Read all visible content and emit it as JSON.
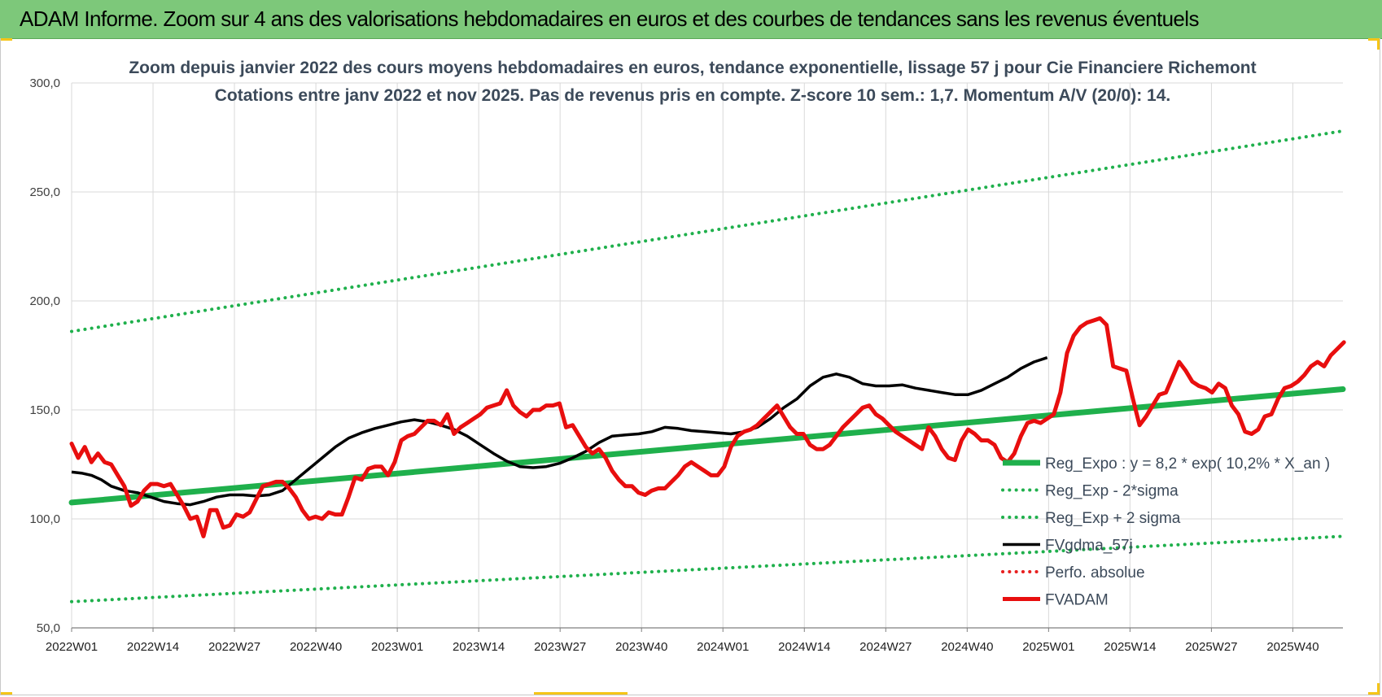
{
  "header": {
    "title": "ADAM Informe. Zoom sur 4 ans des valorisations hebdomadaires en euros et des courbes de tendances sans les revenus éventuels"
  },
  "chart_data": {
    "type": "line",
    "title": "Zoom depuis janvier 2022 des cours moyens hebdomadaires en euros, tendance exponentielle, lissage 57 j pour Cie Financiere Richemont",
    "subtitle": "Cotations entre janv 2022 et nov 2025. Pas de revenus pris en compte. Z-score 10 sem.: 1,7. Momentum A/V (20/0): 14.",
    "xlabel": "",
    "ylabel": "",
    "ylim": [
      50,
      300
    ],
    "yticks": [
      50,
      100,
      150,
      200,
      250,
      300
    ],
    "ytick_labels": [
      "50,0",
      "100,0",
      "150,0",
      "200,0",
      "250,0",
      "300,0"
    ],
    "xticks": [
      "2022W01",
      "2022W14",
      "2022W27",
      "2022W40",
      "2023W01",
      "2023W14",
      "2023W27",
      "2023W40",
      "2024W01",
      "2024W14",
      "2024W27",
      "2024W40",
      "2025W01",
      "2025W14",
      "2025W27",
      "2025W40"
    ],
    "x_week_range": [
      0,
      203
    ],
    "grid": true,
    "legend_position": "right-center",
    "series": [
      {
        "name": "Reg_Expo : y = 8,2 * exp( 10,2% *  X_an )",
        "color": "#1fb04c",
        "style": "thick-solid",
        "points": [
          [
            0,
            107.5
          ],
          [
            203,
            159.5
          ]
        ]
      },
      {
        "name": "Reg_Exp - 2*sigma",
        "color": "#1fb04c",
        "style": "dotted",
        "points": [
          [
            0,
            62
          ],
          [
            203,
            92
          ]
        ]
      },
      {
        "name": "Reg_Exp + 2 sigma",
        "color": "#1fb04c",
        "style": "dotted",
        "points": [
          [
            0,
            186
          ],
          [
            203,
            278
          ]
        ]
      },
      {
        "name": "FVgdma_57j",
        "color": "#000000",
        "style": "solid",
        "points": [
          [
            0,
            121.5
          ],
          [
            3,
            121
          ],
          [
            6,
            120
          ],
          [
            9,
            118
          ],
          [
            12,
            115
          ],
          [
            16,
            113
          ],
          [
            20,
            112
          ],
          [
            24,
            110
          ],
          [
            28,
            108
          ],
          [
            32,
            107
          ],
          [
            36,
            106.5
          ],
          [
            40,
            108
          ],
          [
            44,
            110
          ],
          [
            48,
            111
          ],
          [
            52,
            111
          ],
          [
            56,
            110.5
          ],
          [
            60,
            111
          ],
          [
            64,
            113
          ],
          [
            68,
            118
          ],
          [
            72,
            123
          ],
          [
            76,
            128
          ],
          [
            80,
            133
          ],
          [
            84,
            137
          ],
          [
            88,
            139.5
          ],
          [
            92,
            141.5
          ],
          [
            96,
            143
          ],
          [
            100,
            144.5
          ],
          [
            104,
            145.5
          ],
          [
            108,
            144.5
          ],
          [
            112,
            143
          ],
          [
            116,
            141
          ],
          [
            120,
            138
          ],
          [
            124,
            134
          ],
          [
            128,
            130
          ],
          [
            132,
            126.5
          ],
          [
            136,
            124
          ],
          [
            140,
            123.5
          ],
          [
            144,
            124
          ],
          [
            148,
            125.5
          ],
          [
            152,
            128
          ],
          [
            156,
            131
          ],
          [
            160,
            135
          ],
          [
            164,
            138
          ],
          [
            168,
            138.5
          ],
          [
            172,
            139
          ],
          [
            176,
            140
          ],
          [
            180,
            142
          ],
          [
            184,
            141.5
          ],
          [
            188,
            140.5
          ],
          [
            192,
            140
          ],
          [
            196,
            139.5
          ],
          [
            200,
            139
          ],
          [
            204,
            140
          ],
          [
            208,
            142
          ],
          [
            212,
            146
          ],
          [
            216,
            151
          ],
          [
            220,
            155
          ],
          [
            224,
            161
          ],
          [
            228,
            165
          ],
          [
            232,
            166.5
          ],
          [
            236,
            165
          ],
          [
            240,
            162
          ],
          [
            244,
            161
          ],
          [
            248,
            161
          ],
          [
            252,
            161.5
          ],
          [
            256,
            160
          ],
          [
            260,
            159
          ],
          [
            264,
            158
          ],
          [
            268,
            157
          ],
          [
            272,
            157
          ],
          [
            276,
            159
          ],
          [
            280,
            162
          ],
          [
            284,
            165
          ],
          [
            288,
            169
          ],
          [
            292,
            172
          ],
          [
            296,
            174
          ]
        ]
      },
      {
        "name": "Perfo. absolue",
        "color": "#e82020",
        "style": "dotted",
        "points": []
      },
      {
        "name": "FVADAM",
        "color": "#e80e0e",
        "style": "thick-solid",
        "points": [
          [
            0,
            134.5
          ],
          [
            2,
            128
          ],
          [
            4,
            133
          ],
          [
            6,
            126
          ],
          [
            8,
            130
          ],
          [
            10,
            126
          ],
          [
            12,
            125
          ],
          [
            14,
            120
          ],
          [
            16,
            115
          ],
          [
            18,
            106
          ],
          [
            20,
            108
          ],
          [
            22,
            113
          ],
          [
            24,
            116
          ],
          [
            26,
            116
          ],
          [
            28,
            115
          ],
          [
            30,
            116
          ],
          [
            32,
            111
          ],
          [
            34,
            106
          ],
          [
            36,
            100
          ],
          [
            38,
            101
          ],
          [
            40,
            92
          ],
          [
            42,
            104
          ],
          [
            44,
            104
          ],
          [
            46,
            96
          ],
          [
            48,
            97
          ],
          [
            50,
            102
          ],
          [
            52,
            101
          ],
          [
            54,
            103
          ],
          [
            56,
            109
          ],
          [
            58,
            115
          ],
          [
            60,
            116
          ],
          [
            62,
            117
          ],
          [
            64,
            117
          ],
          [
            66,
            114
          ],
          [
            68,
            110
          ],
          [
            70,
            104
          ],
          [
            72,
            100
          ],
          [
            74,
            101
          ],
          [
            76,
            100
          ],
          [
            78,
            103
          ],
          [
            80,
            102
          ],
          [
            82,
            102
          ],
          [
            84,
            110
          ],
          [
            86,
            119
          ],
          [
            88,
            118
          ],
          [
            90,
            123
          ],
          [
            92,
            124
          ],
          [
            94,
            124
          ],
          [
            96,
            120
          ],
          [
            98,
            126
          ],
          [
            100,
            136
          ],
          [
            102,
            138
          ],
          [
            104,
            139
          ],
          [
            106,
            142
          ],
          [
            108,
            145
          ],
          [
            110,
            145
          ],
          [
            112,
            143
          ],
          [
            114,
            148
          ],
          [
            116,
            139
          ],
          [
            118,
            142
          ],
          [
            120,
            144
          ],
          [
            122,
            146
          ],
          [
            124,
            148
          ],
          [
            126,
            151
          ],
          [
            128,
            152
          ],
          [
            130,
            153
          ],
          [
            132,
            159
          ],
          [
            134,
            152
          ],
          [
            136,
            149
          ],
          [
            138,
            147
          ],
          [
            140,
            150
          ],
          [
            142,
            150
          ],
          [
            144,
            152
          ],
          [
            146,
            152
          ],
          [
            148,
            153
          ],
          [
            150,
            142
          ],
          [
            152,
            143
          ],
          [
            154,
            138
          ],
          [
            156,
            133
          ],
          [
            158,
            130
          ],
          [
            160,
            132
          ],
          [
            162,
            128
          ],
          [
            164,
            122
          ],
          [
            166,
            118
          ],
          [
            168,
            115
          ],
          [
            170,
            115
          ],
          [
            172,
            112
          ],
          [
            174,
            111
          ],
          [
            176,
            113
          ],
          [
            178,
            114
          ],
          [
            180,
            114
          ],
          [
            182,
            117
          ],
          [
            184,
            120
          ],
          [
            186,
            124
          ],
          [
            188,
            126
          ],
          [
            190,
            124
          ],
          [
            192,
            122
          ],
          [
            194,
            120
          ],
          [
            196,
            120
          ],
          [
            198,
            124
          ],
          [
            200,
            133
          ],
          [
            202,
            138
          ],
          [
            204,
            140
          ],
          [
            206,
            141
          ],
          [
            208,
            143
          ],
          [
            210,
            146
          ],
          [
            212,
            149
          ],
          [
            214,
            152
          ],
          [
            216,
            147
          ],
          [
            218,
            142
          ],
          [
            220,
            139
          ],
          [
            222,
            139
          ],
          [
            224,
            134
          ],
          [
            226,
            132
          ],
          [
            228,
            132
          ],
          [
            230,
            134
          ],
          [
            232,
            138
          ],
          [
            234,
            142
          ],
          [
            236,
            145
          ],
          [
            238,
            148
          ],
          [
            240,
            151
          ],
          [
            242,
            152
          ],
          [
            244,
            148
          ],
          [
            246,
            146
          ],
          [
            248,
            143
          ],
          [
            250,
            140
          ],
          [
            252,
            138
          ],
          [
            254,
            136
          ],
          [
            256,
            134
          ],
          [
            258,
            132
          ],
          [
            260,
            142
          ],
          [
            262,
            138
          ],
          [
            264,
            132
          ],
          [
            266,
            128
          ],
          [
            268,
            127
          ],
          [
            270,
            136
          ],
          [
            272,
            141
          ],
          [
            274,
            139
          ],
          [
            276,
            136
          ],
          [
            278,
            136
          ],
          [
            280,
            134
          ],
          [
            282,
            128
          ],
          [
            284,
            126
          ],
          [
            286,
            130
          ],
          [
            288,
            138
          ],
          [
            290,
            144
          ],
          [
            292,
            145
          ],
          [
            294,
            144
          ],
          [
            296,
            146
          ],
          [
            298,
            148
          ],
          [
            300,
            158
          ],
          [
            302,
            176
          ],
          [
            304,
            184
          ],
          [
            306,
            188
          ],
          [
            308,
            190
          ],
          [
            310,
            191
          ],
          [
            312,
            192
          ],
          [
            314,
            189
          ],
          [
            316,
            170
          ],
          [
            318,
            169
          ],
          [
            320,
            168
          ],
          [
            322,
            155
          ],
          [
            324,
            143
          ],
          [
            326,
            147
          ],
          [
            328,
            152
          ],
          [
            330,
            157
          ],
          [
            332,
            158
          ],
          [
            334,
            165
          ],
          [
            336,
            172
          ],
          [
            338,
            168
          ],
          [
            340,
            163
          ],
          [
            342,
            161
          ],
          [
            344,
            160
          ],
          [
            346,
            158
          ],
          [
            348,
            162
          ],
          [
            350,
            160
          ],
          [
            352,
            152
          ],
          [
            354,
            148
          ],
          [
            356,
            140
          ],
          [
            358,
            139
          ],
          [
            360,
            141
          ],
          [
            362,
            147
          ],
          [
            364,
            148
          ],
          [
            366,
            155
          ],
          [
            368,
            160
          ],
          [
            370,
            161
          ],
          [
            372,
            163
          ],
          [
            374,
            166
          ],
          [
            376,
            170
          ],
          [
            378,
            172
          ],
          [
            380,
            170
          ],
          [
            382,
            175
          ],
          [
            384,
            178
          ],
          [
            386,
            181
          ]
        ]
      }
    ]
  }
}
